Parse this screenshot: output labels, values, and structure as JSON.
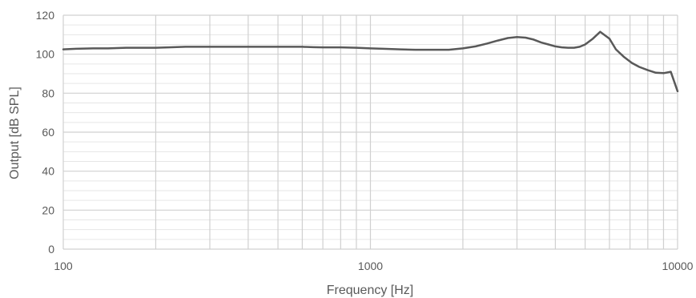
{
  "chart_data": {
    "type": "line",
    "title": "",
    "xlabel": "Frequency [Hz]",
    "ylabel": "Output [dB SPL]",
    "x_scale": "log",
    "xlim": [
      100,
      10000
    ],
    "ylim": [
      0,
      120
    ],
    "x_ticks": [
      "100",
      "1000",
      "10000"
    ],
    "y_ticks": [
      "0",
      "20",
      "40",
      "60",
      "80",
      "100",
      "120"
    ],
    "x_tick_values": [
      100,
      1000,
      10000
    ],
    "y_tick_values": [
      0,
      20,
      40,
      60,
      80,
      100,
      120
    ],
    "grid": true,
    "minor_grid": true,
    "legend": "none",
    "line_color": "#595959",
    "series": [
      {
        "x": [
          100,
          110,
          125,
          140,
          160,
          180,
          200,
          220,
          250,
          300,
          350,
          400,
          450,
          500,
          550,
          600,
          650,
          700,
          800,
          900,
          1000,
          1100,
          1250,
          1400,
          1600,
          1800,
          2000,
          2200,
          2400,
          2600,
          2800,
          3000,
          3200,
          3400,
          3600,
          3800,
          4000,
          4200,
          4400,
          4600,
          4800,
          5000,
          5300,
          5600,
          6000,
          6300,
          6700,
          7100,
          7500,
          8000,
          8500,
          9000,
          9500,
          10000
        ],
        "y": [
          102.5,
          102.8,
          103,
          103,
          103.3,
          103.3,
          103.3,
          103.5,
          103.8,
          103.8,
          103.8,
          103.8,
          103.8,
          103.8,
          103.8,
          103.8,
          103.6,
          103.5,
          103.5,
          103.3,
          103,
          102.8,
          102.5,
          102.3,
          102.3,
          102.3,
          103,
          104,
          105.5,
          107,
          108.3,
          108.8,
          108.5,
          107.5,
          106,
          105,
          104,
          103.5,
          103.3,
          103.3,
          103.8,
          105,
          108,
          111.5,
          108,
          102.5,
          98.5,
          95.5,
          93.5,
          91.8,
          90.5,
          90.3,
          91,
          81
        ]
      }
    ]
  }
}
